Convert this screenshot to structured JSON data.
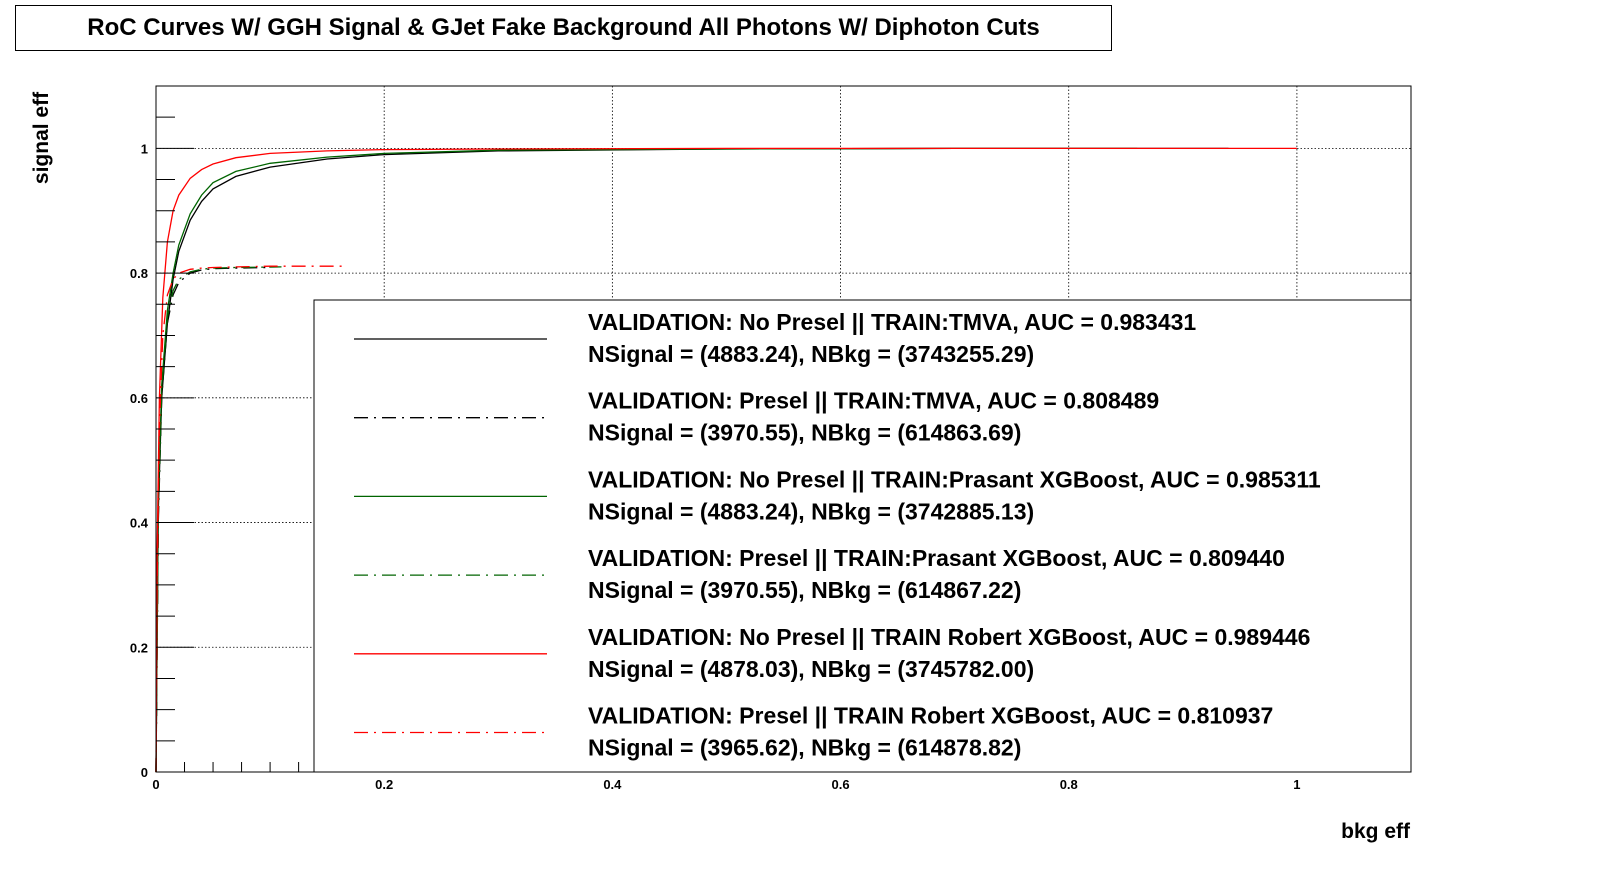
{
  "chart_data": {
    "type": "line",
    "title": "RoC Curves W/ GGH Signal & GJet Fake Background  All Photons W/ Diphoton Cuts",
    "xlabel": "bkg eff",
    "ylabel": "signal eff",
    "xlim": [
      0,
      1.1
    ],
    "ylim": [
      0,
      1.1
    ],
    "grid": true,
    "x_ticks": [
      "0",
      "0.2",
      "0.4",
      "0.6",
      "0.8",
      "1"
    ],
    "y_ticks": [
      "0",
      "0.2",
      "0.4",
      "0.6",
      "0.8",
      "1"
    ],
    "legend_placement": "bottom-right",
    "series": [
      {
        "legend_line1": "VALIDATION: No Presel || TRAIN:TMVA, AUC = 0.983431",
        "legend_line2": " NSignal = (4883.24), NBkg = (3743255.29)",
        "color": "#000000",
        "style": "solid",
        "x": [
          0,
          0.002,
          0.005,
          0.01,
          0.015,
          0.02,
          0.03,
          0.04,
          0.05,
          0.07,
          0.1,
          0.15,
          0.2,
          0.3,
          0.5,
          0.7,
          0.85,
          0.94
        ],
        "y": [
          0,
          0.42,
          0.6,
          0.72,
          0.79,
          0.835,
          0.885,
          0.915,
          0.935,
          0.955,
          0.97,
          0.983,
          0.99,
          0.996,
          0.999,
          1.0,
          1.0,
          1.0
        ]
      },
      {
        "legend_line1": "VALIDATION: Presel || TRAIN:TMVA, AUC = 0.808489",
        "legend_line2": " NSignal = (3970.55), NBkg = (614863.69)",
        "color": "#000000",
        "style": "dashdot",
        "x": [
          0,
          0.002,
          0.005,
          0.01,
          0.015,
          0.02,
          0.03,
          0.04,
          0.05,
          0.07,
          0.1
        ],
        "y": [
          0,
          0.4,
          0.6,
          0.72,
          0.765,
          0.785,
          0.8,
          0.805,
          0.807,
          0.808,
          0.809
        ]
      },
      {
        "legend_line1": "VALIDATION: No Presel || TRAIN:Prasant XGBoost, AUC = 0.985311",
        "legend_line2": " NSignal = (4883.24), NBkg = (3742885.13)",
        "color": "#006400",
        "style": "solid",
        "x": [
          0,
          0.002,
          0.005,
          0.01,
          0.015,
          0.02,
          0.03,
          0.04,
          0.05,
          0.07,
          0.1,
          0.15,
          0.2,
          0.3,
          0.5,
          0.7,
          0.86
        ],
        "y": [
          0,
          0.44,
          0.62,
          0.74,
          0.8,
          0.845,
          0.895,
          0.925,
          0.945,
          0.963,
          0.976,
          0.986,
          0.992,
          0.997,
          0.999,
          1.0,
          1.0
        ]
      },
      {
        "legend_line1": "VALIDATION: Presel || TRAIN:Prasant XGBoost, AUC = 0.809440",
        "legend_line2": " NSignal = (3970.55), NBkg = (614867.22)",
        "color": "#006400",
        "style": "dashdot",
        "x": [
          0,
          0.002,
          0.005,
          0.01,
          0.015,
          0.02,
          0.03,
          0.04,
          0.05,
          0.07,
          0.11
        ],
        "y": [
          0,
          0.41,
          0.61,
          0.73,
          0.772,
          0.79,
          0.802,
          0.806,
          0.808,
          0.809,
          0.81
        ]
      },
      {
        "legend_line1": "VALIDATION: No Presel || TRAIN Robert XGBoost, AUC = 0.989446",
        "legend_line2": " NSignal = (4878.03), NBkg = (3745782.00)",
        "color": "#ff0000",
        "style": "solid",
        "x": [
          0,
          0.001,
          0.003,
          0.006,
          0.01,
          0.015,
          0.02,
          0.03,
          0.04,
          0.05,
          0.07,
          0.1,
          0.15,
          0.2,
          0.3,
          0.5,
          0.7,
          0.85,
          1.0
        ],
        "y": [
          0,
          0.35,
          0.6,
          0.76,
          0.85,
          0.9,
          0.925,
          0.952,
          0.966,
          0.975,
          0.985,
          0.992,
          0.996,
          0.998,
          0.999,
          1.0,
          1.0,
          1.0,
          1.0
        ]
      },
      {
        "legend_line1": "VALIDATION: Presel || TRAIN Robert XGBoost, AUC = 0.810937",
        "legend_line2": " NSignal = (3965.62), NBkg = (614878.82)",
        "color": "#ff0000",
        "style": "dashdot",
        "x": [
          0,
          0.001,
          0.003,
          0.006,
          0.01,
          0.015,
          0.02,
          0.03,
          0.04,
          0.05,
          0.07,
          0.1,
          0.13,
          0.165
        ],
        "y": [
          0,
          0.3,
          0.55,
          0.7,
          0.765,
          0.79,
          0.8,
          0.806,
          0.808,
          0.809,
          0.81,
          0.811,
          0.811,
          0.811
        ]
      }
    ]
  }
}
